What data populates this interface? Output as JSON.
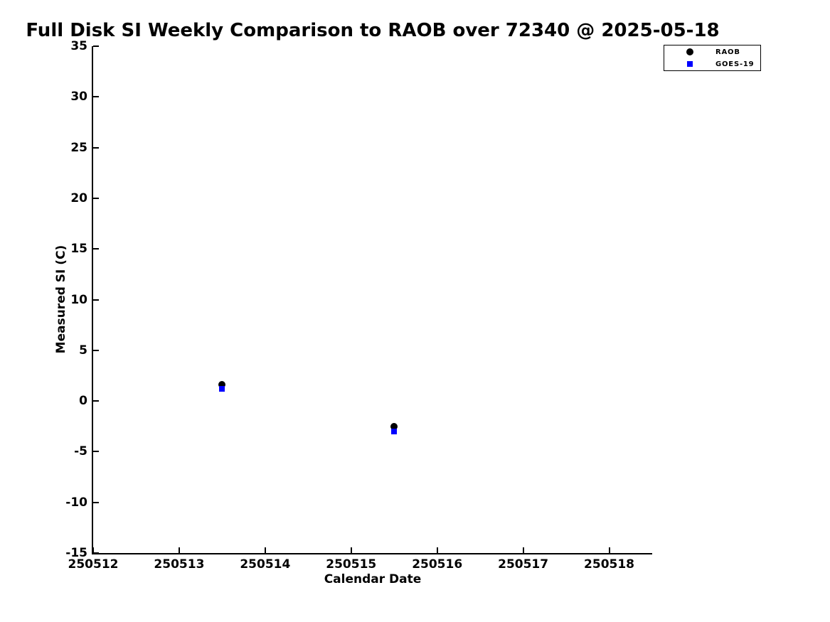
{
  "figure": {
    "background": "#ffffff"
  },
  "chart_data": {
    "type": "scatter",
    "title": "Full Disk SI Weekly Comparison to RAOB over 72340 @ 2025-05-18",
    "xlabel": "Calendar Date",
    "ylabel": "Measured SI (C)",
    "xlim": [
      250512,
      250518.5
    ],
    "ylim": [
      -15,
      35
    ],
    "xticks": [
      250512,
      250513,
      250514,
      250515,
      250516,
      250517,
      250518
    ],
    "yticks": [
      -15,
      -10,
      -5,
      0,
      5,
      10,
      15,
      20,
      25,
      30,
      35
    ],
    "grid": false,
    "axis_color": "#000000",
    "legend_position": "top-right",
    "series": [
      {
        "name": "RAOB",
        "marker": "circle",
        "color": "#000000",
        "points": [
          {
            "x": 250513.5,
            "y": 1.6
          },
          {
            "x": 250515.5,
            "y": -2.5
          }
        ]
      },
      {
        "name": "GOES-19",
        "marker": "square",
        "color": "#0000ff",
        "points": [
          {
            "x": 250513.5,
            "y": 1.2
          },
          {
            "x": 250515.5,
            "y": -3.0
          }
        ]
      }
    ]
  }
}
